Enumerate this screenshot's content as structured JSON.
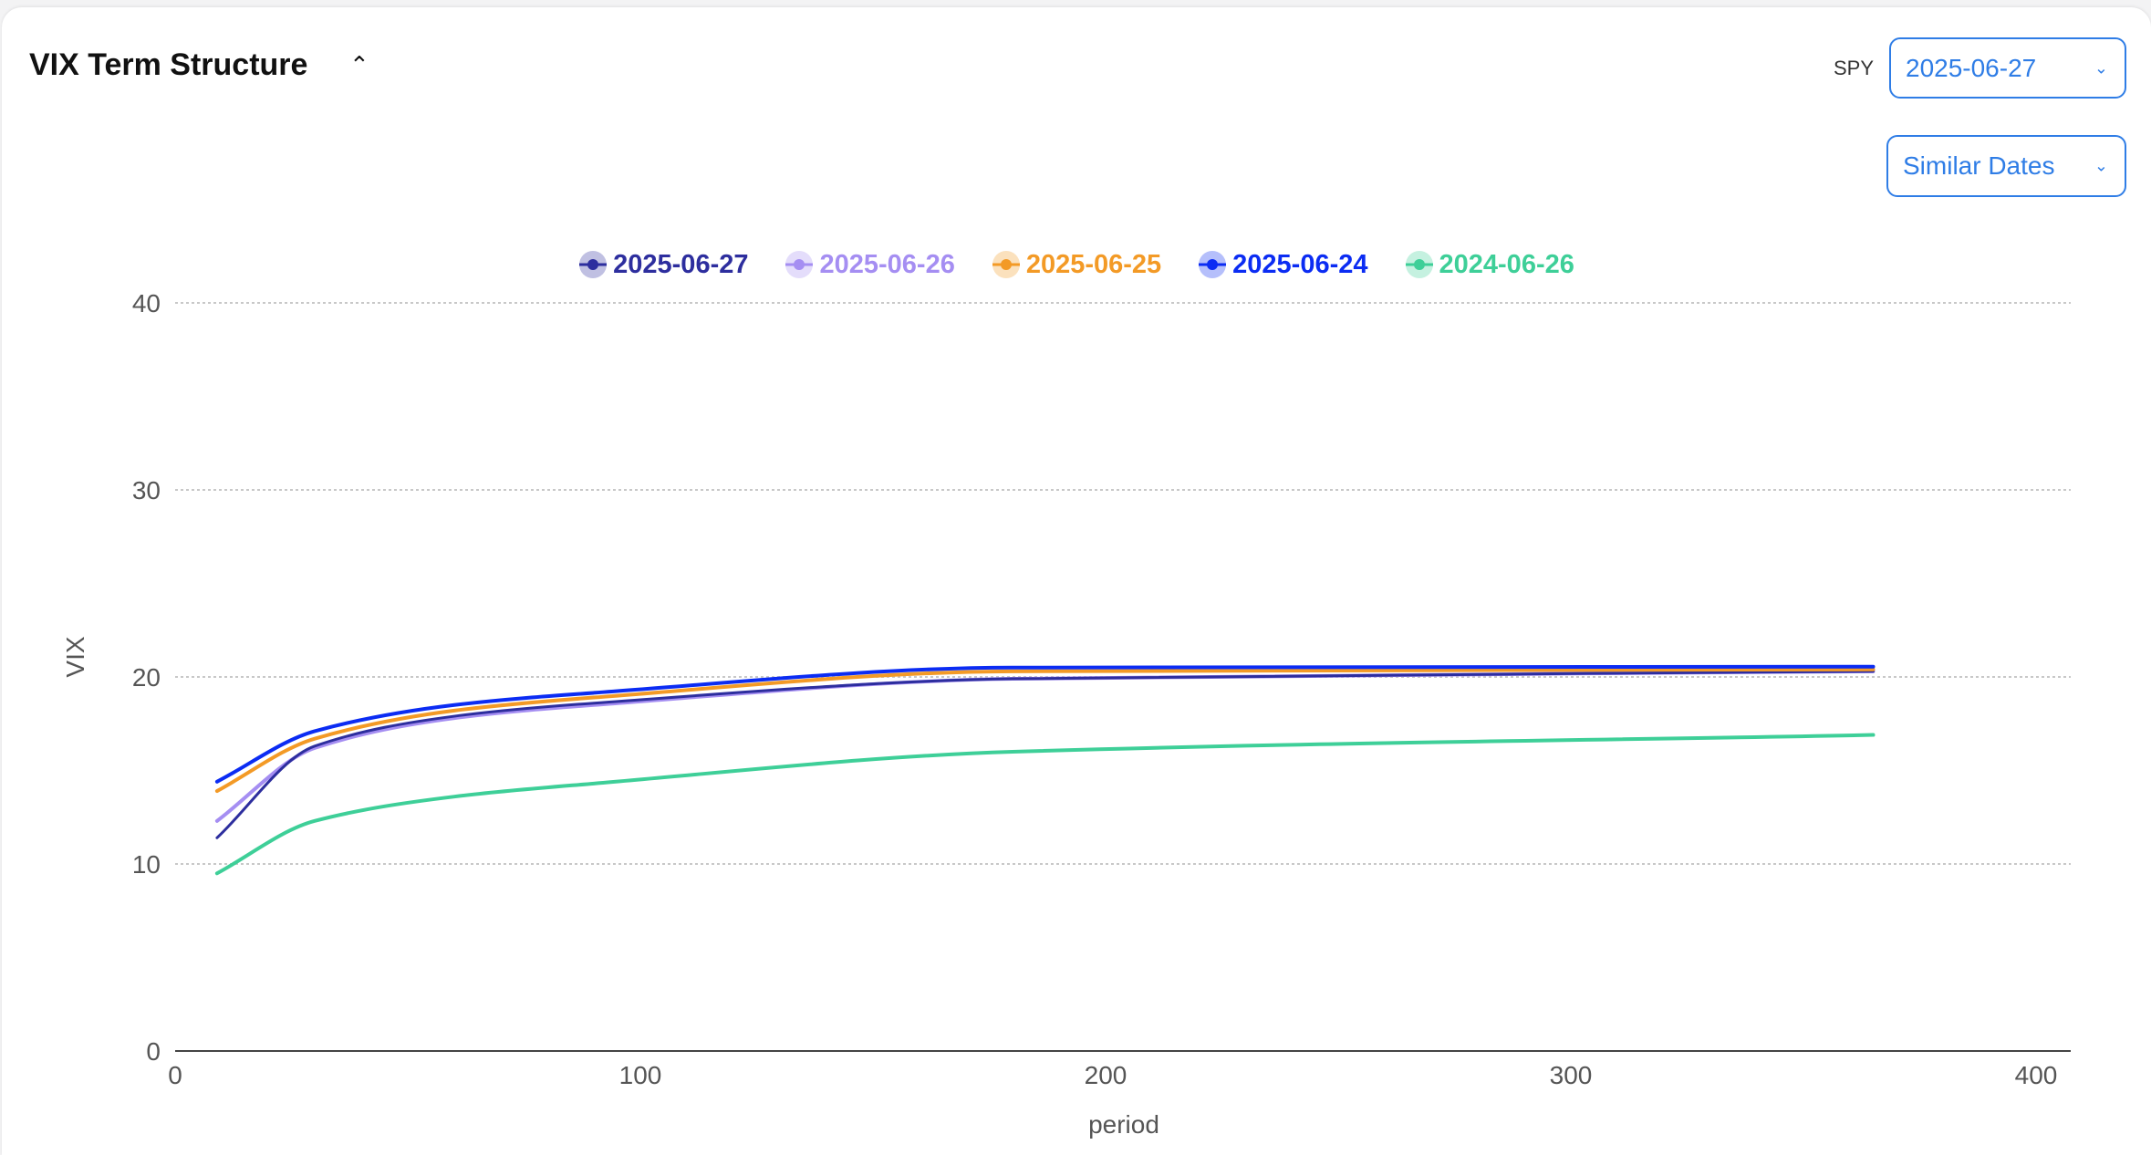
{
  "header": {
    "title": "VIX Term Structure",
    "collapse_icon": "chevron-up-icon"
  },
  "controls": {
    "symbol_label": "SPY",
    "date_value": "2025-06-27",
    "mode_value": "Similar Dates",
    "dropdown_icon": "chevron-down-icon"
  },
  "chart_data": {
    "type": "line",
    "title": "",
    "xlabel": "period",
    "ylabel": "VIX",
    "xlim": [
      0,
      400
    ],
    "ylim": [
      0,
      40
    ],
    "xticks": [
      0,
      100,
      200,
      300,
      400
    ],
    "yticks": [
      0,
      10,
      20,
      30,
      40
    ],
    "grid": "horizontal dotted",
    "legend_position": "top-center",
    "x": [
      9,
      30,
      60,
      90,
      180,
      365
    ],
    "series": [
      {
        "name": "2025-06-27",
        "color": "#2d2e9e",
        "values": [
          11.4,
          16.3,
          17.9,
          18.6,
          19.9,
          20.3
        ]
      },
      {
        "name": "2025-06-26",
        "color": "#a58ef2",
        "values": [
          12.3,
          16.2,
          17.8,
          18.5,
          19.9,
          20.3
        ]
      },
      {
        "name": "2025-06-25",
        "color": "#f39a26",
        "values": [
          13.9,
          16.7,
          18.2,
          18.9,
          20.3,
          20.4
        ]
      },
      {
        "name": "2025-06-24",
        "color": "#0b2cf3",
        "values": [
          14.4,
          17.1,
          18.5,
          19.15,
          20.5,
          20.55
        ]
      },
      {
        "name": "2024-06-26",
        "color": "#3ecf98",
        "values": [
          9.5,
          12.3,
          13.6,
          14.3,
          16.0,
          16.9
        ]
      }
    ]
  }
}
